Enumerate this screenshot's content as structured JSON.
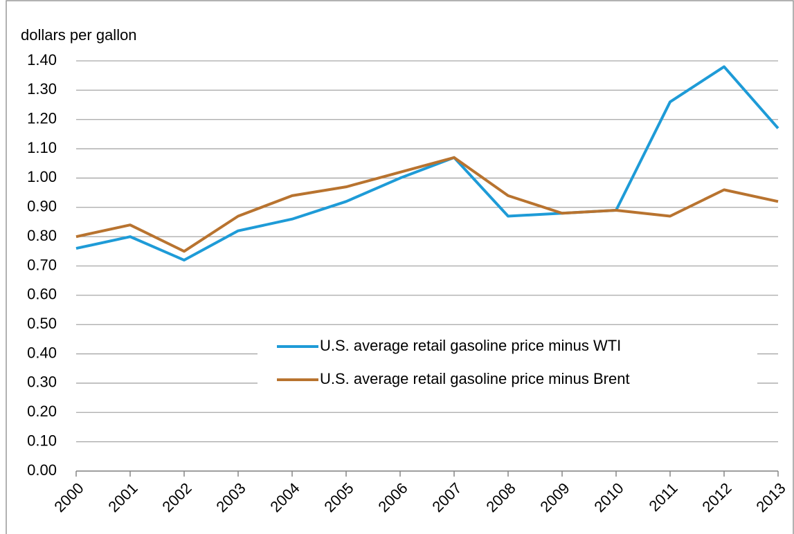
{
  "chart_data": {
    "type": "line",
    "y_axis_label": "dollars per gallon",
    "categories": [
      "2000",
      "2001",
      "2002",
      "2003",
      "2004",
      "2005",
      "2006",
      "2007",
      "2008",
      "2009",
      "2010",
      "2011",
      "2012",
      "2013"
    ],
    "series": [
      {
        "name": "U.S. average retail gasoline price minus WTI",
        "color": "#1e9bd7",
        "values": [
          0.76,
          0.8,
          0.72,
          0.82,
          0.86,
          0.92,
          1.0,
          1.07,
          0.87,
          0.88,
          0.89,
          1.26,
          1.38,
          1.17
        ]
      },
      {
        "name": "U.S. average retail gasoline price minus Brent",
        "color": "#b8732f",
        "values": [
          0.8,
          0.84,
          0.75,
          0.87,
          0.94,
          0.97,
          1.02,
          1.07,
          0.94,
          0.88,
          0.89,
          0.87,
          0.96,
          0.92
        ]
      }
    ],
    "ylim": [
      0,
      1.4
    ],
    "yticks": [
      {
        "value": 0,
        "label": "0.00"
      },
      {
        "value": 0.1,
        "label": "0.10"
      },
      {
        "value": 0.2,
        "label": "0.20"
      },
      {
        "value": 0.3,
        "label": "0.30"
      },
      {
        "value": 0.4,
        "label": "0.40"
      },
      {
        "value": 0.5,
        "label": "0.50"
      },
      {
        "value": 0.6,
        "label": "0.60"
      },
      {
        "value": 0.7,
        "label": "0.70"
      },
      {
        "value": 0.8,
        "label": "0.80"
      },
      {
        "value": 0.9,
        "label": "0.90"
      },
      {
        "value": 1.0,
        "label": "1.00"
      },
      {
        "value": 1.1,
        "label": "1.10"
      },
      {
        "value": 1.2,
        "label": "1.20"
      },
      {
        "value": 1.3,
        "label": "1.30"
      },
      {
        "value": 1.4,
        "label": "1.40"
      }
    ],
    "grid": true
  }
}
